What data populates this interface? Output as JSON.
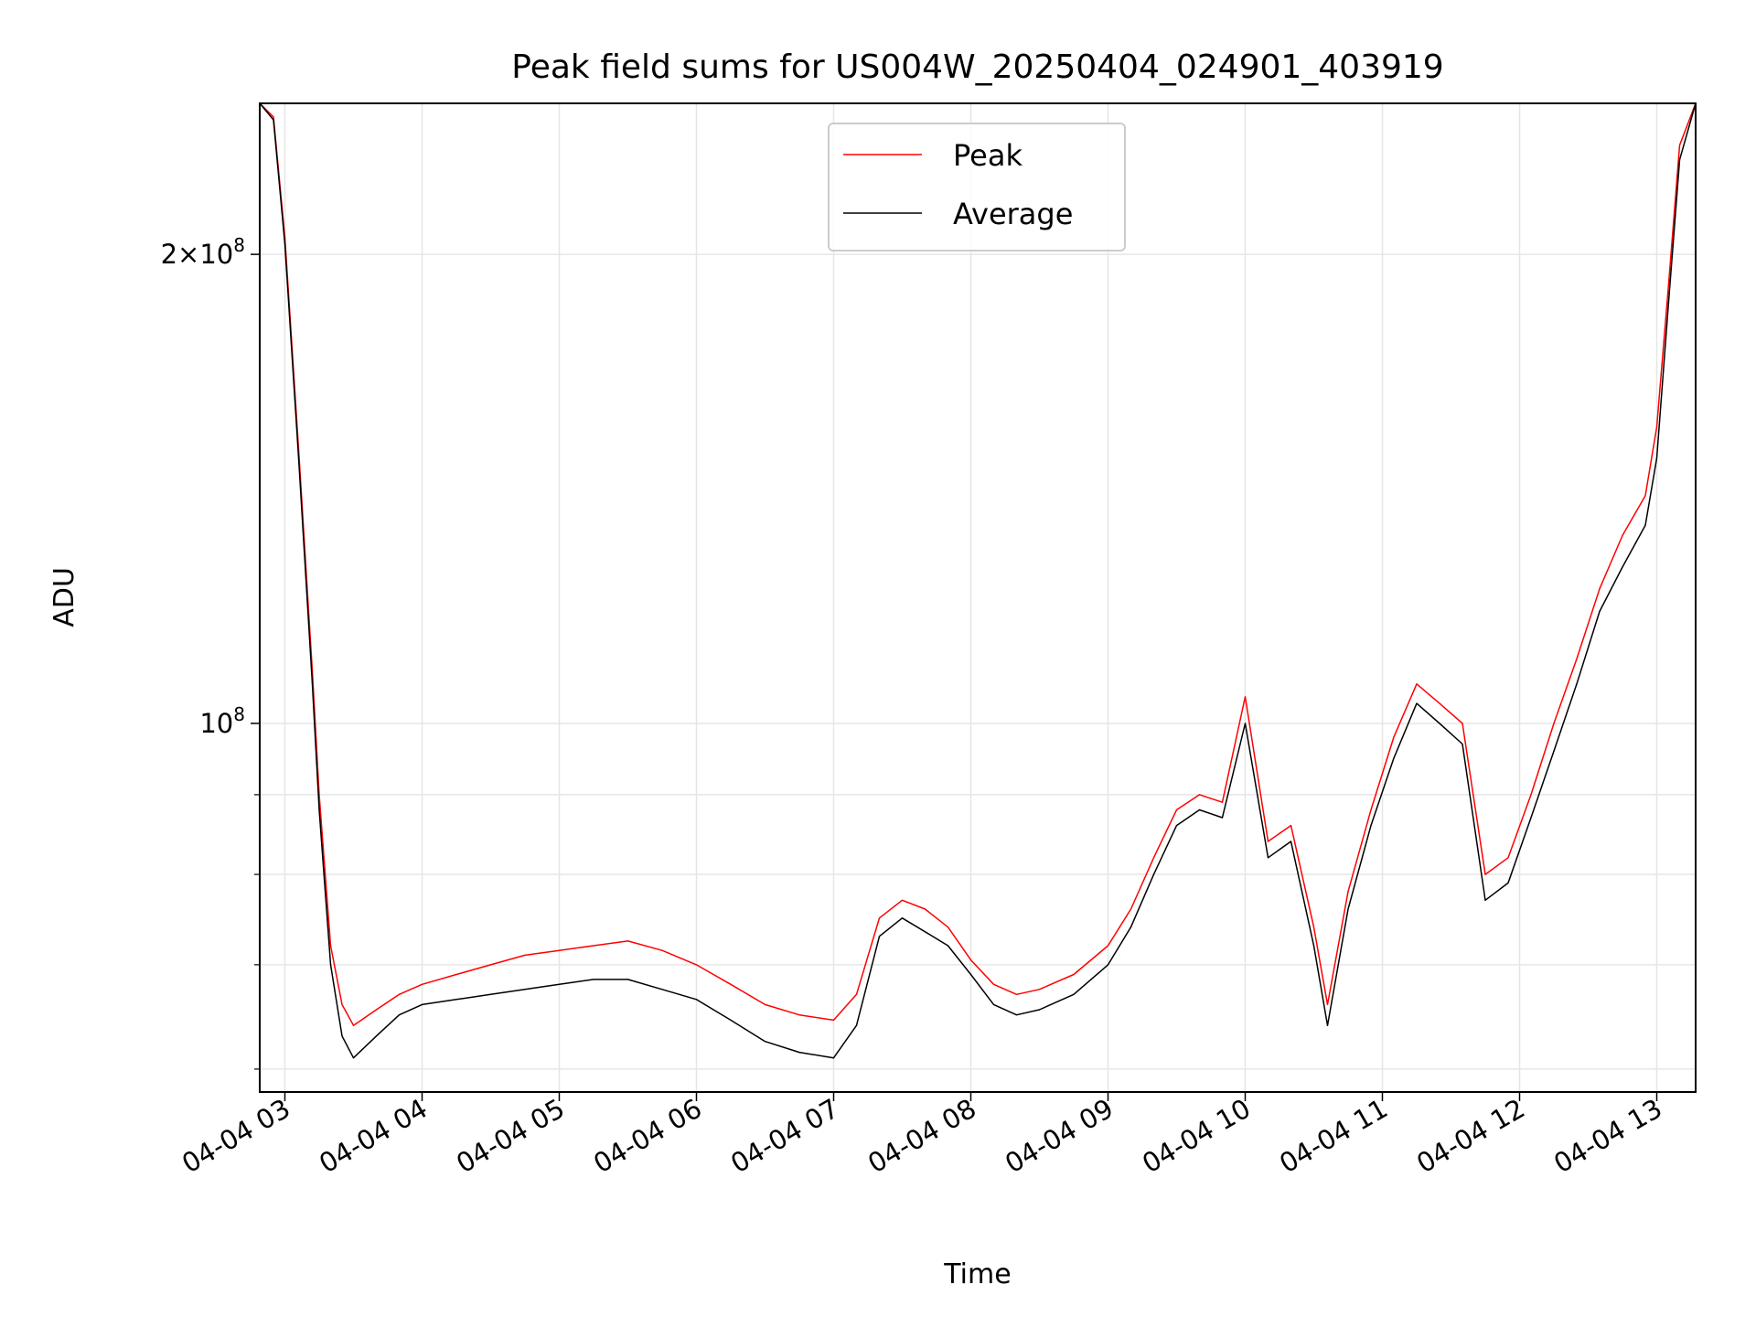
{
  "chart_data": {
    "type": "line",
    "title": "Peak field sums for US004W_20250404_024901_403919",
    "xlabel": "Time",
    "ylabel": "ADU",
    "y_scale": "log",
    "ylim": [
      58000000,
      250000000
    ],
    "xlim": [
      "2025-04-04 02:49",
      "2025-04-04 13:17"
    ],
    "grid": true,
    "legend_position": "top-center",
    "x_ticks": [
      "2025-04-04 03:00",
      "2025-04-04 04:00",
      "2025-04-04 05:00",
      "2025-04-04 06:00",
      "2025-04-04 07:00",
      "2025-04-04 08:00",
      "2025-04-04 09:00",
      "2025-04-04 10:00",
      "2025-04-04 11:00",
      "2025-04-04 12:00",
      "2025-04-04 13:00"
    ],
    "x_tick_labels": [
      "04-04 03",
      "04-04 04",
      "04-04 05",
      "04-04 06",
      "04-04 07",
      "04-04 08",
      "04-04 09",
      "04-04 10",
      "04-04 11",
      "04-04 12",
      "04-04 13"
    ],
    "y_major_ticks": [
      100000000,
      200000000
    ],
    "y_major_labels": [
      {
        "mant": "",
        "exp": "8"
      },
      {
        "mant": "2×",
        "exp": "8"
      }
    ],
    "y_minor_ticks": [
      60000000,
      70000000,
      80000000,
      90000000
    ],
    "series": [
      {
        "name": "Peak",
        "color": "#ff0000",
        "x": [
          "2025-04-04 02:49",
          "2025-04-04 02:55",
          "2025-04-04 03:00",
          "2025-04-04 03:06",
          "2025-04-04 03:12",
          "2025-04-04 03:15",
          "2025-04-04 03:20",
          "2025-04-04 03:25",
          "2025-04-04 03:30",
          "2025-04-04 03:40",
          "2025-04-04 03:50",
          "2025-04-04 04:00",
          "2025-04-04 04:15",
          "2025-04-04 04:30",
          "2025-04-04 04:45",
          "2025-04-04 05:00",
          "2025-04-04 05:15",
          "2025-04-04 05:30",
          "2025-04-04 05:45",
          "2025-04-04 06:00",
          "2025-04-04 06:15",
          "2025-04-04 06:30",
          "2025-04-04 06:45",
          "2025-04-04 07:00",
          "2025-04-04 07:10",
          "2025-04-04 07:20",
          "2025-04-04 07:30",
          "2025-04-04 07:40",
          "2025-04-04 07:50",
          "2025-04-04 08:00",
          "2025-04-04 08:10",
          "2025-04-04 08:20",
          "2025-04-04 08:30",
          "2025-04-04 08:45",
          "2025-04-04 09:00",
          "2025-04-04 09:10",
          "2025-04-04 09:20",
          "2025-04-04 09:30",
          "2025-04-04 09:40",
          "2025-04-04 09:50",
          "2025-04-04 10:00",
          "2025-04-04 10:10",
          "2025-04-04 10:20",
          "2025-04-04 10:30",
          "2025-04-04 10:36",
          "2025-04-04 10:45",
          "2025-04-04 10:55",
          "2025-04-04 11:05",
          "2025-04-04 11:15",
          "2025-04-04 11:25",
          "2025-04-04 11:35",
          "2025-04-04 11:45",
          "2025-04-04 11:55",
          "2025-04-04 12:05",
          "2025-04-04 12:15",
          "2025-04-04 12:25",
          "2025-04-04 12:35",
          "2025-04-04 12:45",
          "2025-04-04 12:55",
          "2025-04-04 13:00",
          "2025-04-04 13:05",
          "2025-04-04 13:10",
          "2025-04-04 13:17"
        ],
        "y": [
          250000000,
          245000000,
          205000000,
          150000000,
          108000000,
          90000000,
          72000000,
          66000000,
          64000000,
          65500000,
          67000000,
          68000000,
          69000000,
          70000000,
          71000000,
          71500000,
          72000000,
          72500000,
          71500000,
          70000000,
          68000000,
          66000000,
          65000000,
          64500000,
          67000000,
          75000000,
          77000000,
          76000000,
          74000000,
          70500000,
          68000000,
          67000000,
          67500000,
          69000000,
          72000000,
          76000000,
          82000000,
          88000000,
          90000000,
          89000000,
          104000000,
          84000000,
          86000000,
          74000000,
          66000000,
          78000000,
          88000000,
          98000000,
          106000000,
          103000000,
          100000000,
          80000000,
          82000000,
          90000000,
          100000000,
          110000000,
          122000000,
          132000000,
          140000000,
          155000000,
          190000000,
          235000000,
          250000000
        ]
      },
      {
        "name": "Average",
        "color": "#000000",
        "x": [
          "2025-04-04 02:49",
          "2025-04-04 02:55",
          "2025-04-04 03:00",
          "2025-04-04 03:06",
          "2025-04-04 03:12",
          "2025-04-04 03:15",
          "2025-04-04 03:20",
          "2025-04-04 03:25",
          "2025-04-04 03:30",
          "2025-04-04 03:40",
          "2025-04-04 03:50",
          "2025-04-04 04:00",
          "2025-04-04 04:15",
          "2025-04-04 04:30",
          "2025-04-04 04:45",
          "2025-04-04 05:00",
          "2025-04-04 05:15",
          "2025-04-04 05:30",
          "2025-04-04 05:45",
          "2025-04-04 06:00",
          "2025-04-04 06:15",
          "2025-04-04 06:30",
          "2025-04-04 06:45",
          "2025-04-04 07:00",
          "2025-04-04 07:10",
          "2025-04-04 07:20",
          "2025-04-04 07:30",
          "2025-04-04 07:40",
          "2025-04-04 07:50",
          "2025-04-04 08:00",
          "2025-04-04 08:10",
          "2025-04-04 08:20",
          "2025-04-04 08:30",
          "2025-04-04 08:45",
          "2025-04-04 09:00",
          "2025-04-04 09:10",
          "2025-04-04 09:20",
          "2025-04-04 09:30",
          "2025-04-04 09:40",
          "2025-04-04 09:50",
          "2025-04-04 10:00",
          "2025-04-04 10:10",
          "2025-04-04 10:20",
          "2025-04-04 10:30",
          "2025-04-04 10:36",
          "2025-04-04 10:45",
          "2025-04-04 10:55",
          "2025-04-04 11:05",
          "2025-04-04 11:15",
          "2025-04-04 11:25",
          "2025-04-04 11:35",
          "2025-04-04 11:45",
          "2025-04-04 11:55",
          "2025-04-04 12:05",
          "2025-04-04 12:15",
          "2025-04-04 12:25",
          "2025-04-04 12:35",
          "2025-04-04 12:45",
          "2025-04-04 12:55",
          "2025-04-04 13:00",
          "2025-04-04 13:05",
          "2025-04-04 13:10",
          "2025-04-04 13:17"
        ],
        "y": [
          250000000,
          244000000,
          203000000,
          148000000,
          106000000,
          88000000,
          70000000,
          63000000,
          61000000,
          63000000,
          65000000,
          66000000,
          66500000,
          67000000,
          67500000,
          68000000,
          68500000,
          68500000,
          67500000,
          66500000,
          64500000,
          62500000,
          61500000,
          61000000,
          64000000,
          73000000,
          75000000,
          73500000,
          72000000,
          69000000,
          66000000,
          65000000,
          65500000,
          67000000,
          70000000,
          74000000,
          80000000,
          86000000,
          88000000,
          87000000,
          100000000,
          82000000,
          84000000,
          72000000,
          64000000,
          76000000,
          86000000,
          95000000,
          103000000,
          100000000,
          97000000,
          77000000,
          79000000,
          87000000,
          96000000,
          106000000,
          118000000,
          126000000,
          134000000,
          148000000,
          185000000,
          230000000,
          250000000
        ]
      }
    ]
  }
}
